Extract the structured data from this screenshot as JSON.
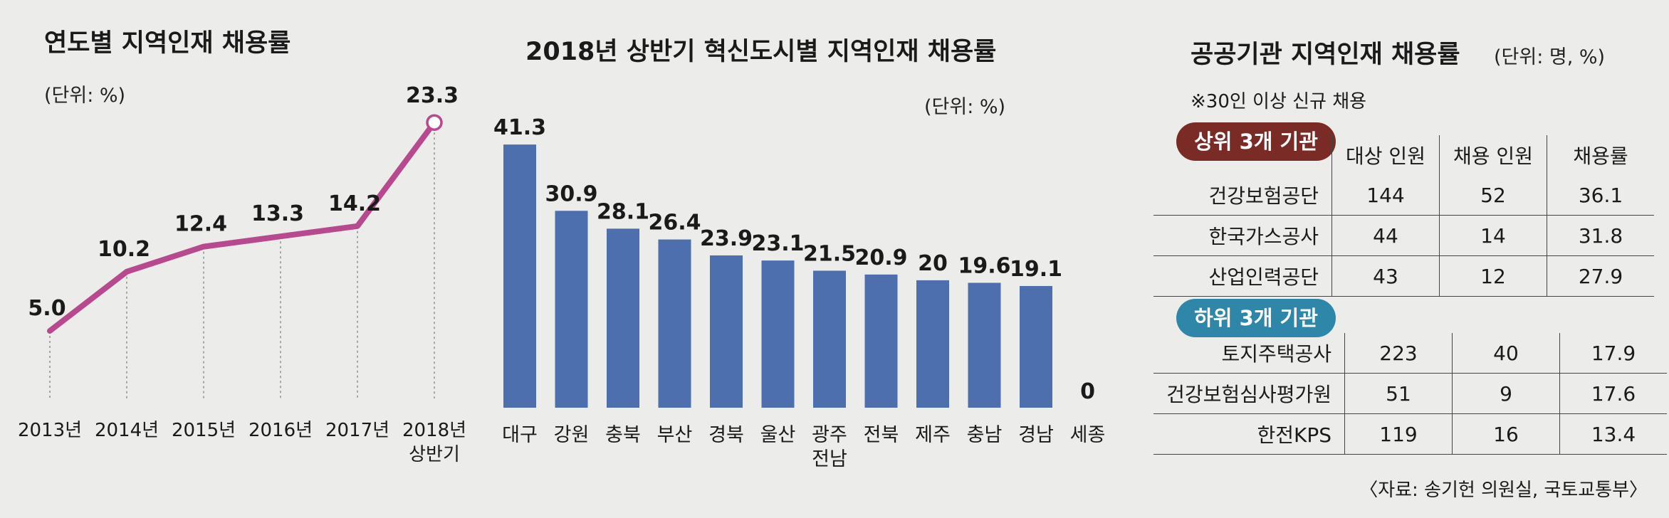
{
  "chart_data": [
    {
      "type": "line",
      "title": "연도별 지역인재 채용률",
      "unit_label": "(단위: %)",
      "categories": [
        "2013년",
        "2014년",
        "2015년",
        "2016년",
        "2017년",
        "2018년 상반기"
      ],
      "values": [
        5.0,
        10.2,
        12.4,
        13.3,
        14.2,
        23.3
      ],
      "value_labels": [
        "5.0",
        "10.2",
        "12.4",
        "13.3",
        "14.2",
        "23.3"
      ],
      "ylim": [
        0,
        25
      ],
      "colors": {
        "line": "#b8498f"
      }
    },
    {
      "type": "bar",
      "title": "2018년 상반기 혁신도시별 지역인재 채용률",
      "unit_label": "(단위: %)",
      "categories": [
        "대구",
        "강원",
        "충북",
        "부산",
        "경북",
        "울산",
        "광주 전남",
        "전북",
        "제주",
        "충남",
        "경남",
        "세종"
      ],
      "values": [
        41.3,
        30.9,
        28.1,
        26.4,
        23.9,
        23.1,
        21.5,
        20.9,
        20,
        19.6,
        19.1,
        0
      ],
      "value_labels": [
        "41.3",
        "30.9",
        "28.1",
        "26.4",
        "23.9",
        "23.1",
        "21.5",
        "20.9",
        "20",
        "19.6",
        "19.1",
        "0"
      ],
      "ylim": [
        0,
        45
      ],
      "colors": {
        "bar": "#4d6fad"
      }
    },
    {
      "type": "table",
      "title": "공공기관 지역인재 채용률",
      "unit_label": "(단위: 명, %)",
      "note": "※30인 이상 신규 채용",
      "columns": [
        "대상 인원",
        "채용 인원",
        "채용률"
      ],
      "groups": [
        {
          "label": "상위 3개 기관",
          "color": "#7b2b25",
          "rows": [
            {
              "name": "건강보험공단",
              "target": "144",
              "hired": "52",
              "rate": "36.1"
            },
            {
              "name": "한국가스공사",
              "target": "44",
              "hired": "14",
              "rate": "31.8"
            },
            {
              "name": "산업인력공단",
              "target": "43",
              "hired": "12",
              "rate": "27.9"
            }
          ]
        },
        {
          "label": "하위 3개 기관",
          "color": "#2e86a8",
          "rows": [
            {
              "name": "토지주택공사",
              "target": "223",
              "hired": "40",
              "rate": "17.9"
            },
            {
              "name": "건강보험심사평가원",
              "target": "51",
              "hired": "9",
              "rate": "17.6"
            },
            {
              "name": "한전KPS",
              "target": "119",
              "hired": "16",
              "rate": "13.4"
            }
          ]
        }
      ],
      "source": "〈자료: 송기헌 의원실, 국토교통부〉"
    }
  ]
}
